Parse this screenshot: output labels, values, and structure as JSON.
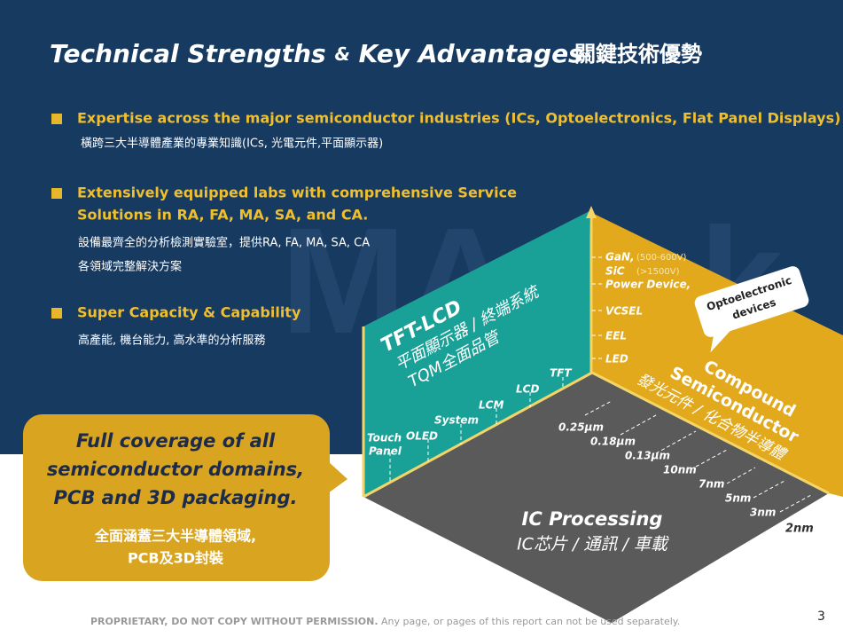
{
  "header": {
    "title": "Technical Strengths",
    "title_amp": "&",
    "title_end": "Key Advantages",
    "title_zh": "關鍵技術優勢"
  },
  "watermark": "MA-tek",
  "bullets": [
    {
      "lines": [
        "Expertise across the major semiconductor industries (ICs, Optoelectronics, Flat Panel Displays)"
      ],
      "sub": [
        "橫跨三大半導體產業的專業知識(ICs, 光電元件,平面顯示器)"
      ]
    },
    {
      "lines": [
        "Extensively equipped labs with comprehensive Service",
        "Solutions in RA, FA, MA, SA, and CA."
      ],
      "sub": [
        "設備最齊全的分析檢測實驗室，提供RA, FA, MA, SA, CA",
        "各領域完整解決方案"
      ]
    },
    {
      "lines": [
        "Super Capacity & Capability"
      ],
      "sub": [
        "高產能, 機台能力, 高水準的分析服務"
      ]
    }
  ],
  "callout": {
    "lines": [
      "Full coverage of all",
      "semiconductor domains,",
      "PCB and 3D packaging."
    ],
    "sub": [
      "全面涵蓋三大半導體領域,",
      "PCB及3D封裝"
    ]
  },
  "diagram": {
    "tft": {
      "title": "TFT-LCD",
      "sub1": "平面顯示器 / 終端系統",
      "sub2": "TQM全面品管",
      "labels": [
        "Touch",
        "Panel",
        "OLED",
        "System",
        "LCM",
        "LCD",
        "TFT"
      ]
    },
    "compound": {
      "title1": "Compound",
      "title2": "Semiconductor",
      "sub": "發光元件 / 化合物半導體",
      "labels": [
        "GaN,",
        "(500-600V)",
        "SiC",
        "(>1500V)",
        "Power Device,",
        "VCSEL",
        "EEL",
        "LED"
      ],
      "bubble": [
        "Optoelectronic",
        "devices"
      ]
    },
    "ic": {
      "title": "IC Processing",
      "sub": "IC芯片 / 通訊 / 車載",
      "labels": [
        "0.25μm",
        "0.18μm",
        "0.13μm",
        "10nm",
        "7nm",
        "5nm",
        "3nm",
        "2nm"
      ]
    }
  },
  "footer": {
    "bold": "PROPRIETARY, DO NOT COPY WITHOUT PERMISSION.",
    "text": "Any page, or pages of this report can not be used separately.",
    "page": "3"
  }
}
